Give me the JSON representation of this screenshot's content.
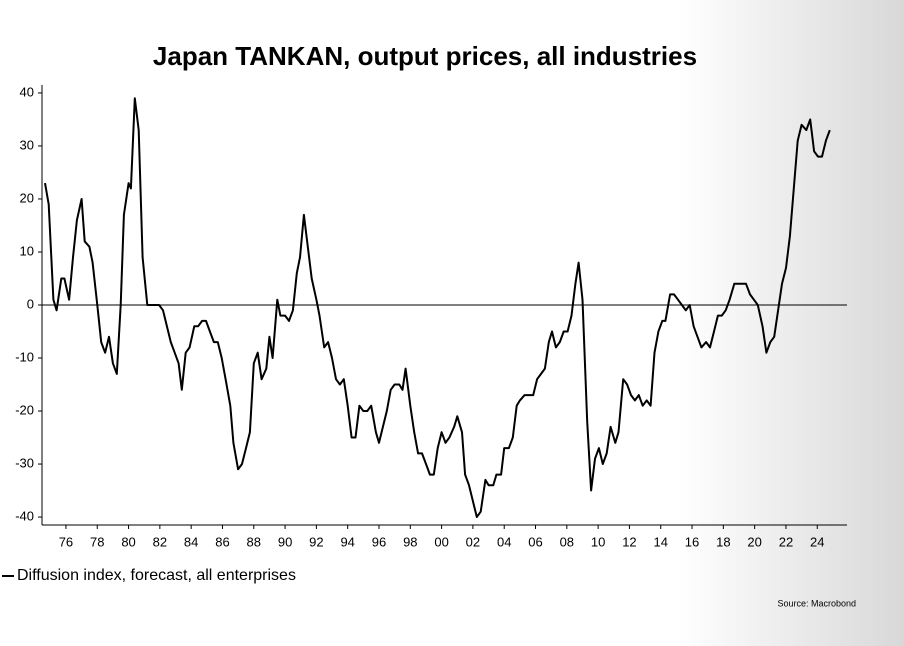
{
  "chart_data": {
    "type": "line",
    "title": "Japan TANKAN, output prices, all industries",
    "source": "Source: Macrobond",
    "xlim": [
      1974.47,
      2025.9
    ],
    "ylim": [
      -41.5,
      41.5
    ],
    "xticks": [
      {
        "value": 1976,
        "label": "76"
      },
      {
        "value": 1978,
        "label": "78"
      },
      {
        "value": 1980,
        "label": "80"
      },
      {
        "value": 1982,
        "label": "82"
      },
      {
        "value": 1984,
        "label": "84"
      },
      {
        "value": 1986,
        "label": "86"
      },
      {
        "value": 1988,
        "label": "88"
      },
      {
        "value": 1990,
        "label": "90"
      },
      {
        "value": 1992,
        "label": "92"
      },
      {
        "value": 1994,
        "label": "94"
      },
      {
        "value": 1996,
        "label": "96"
      },
      {
        "value": 1998,
        "label": "98"
      },
      {
        "value": 2000,
        "label": "00"
      },
      {
        "value": 2002,
        "label": "02"
      },
      {
        "value": 2004,
        "label": "04"
      },
      {
        "value": 2006,
        "label": "06"
      },
      {
        "value": 2008,
        "label": "08"
      },
      {
        "value": 2010,
        "label": "10"
      },
      {
        "value": 2012,
        "label": "12"
      },
      {
        "value": 2014,
        "label": "14"
      },
      {
        "value": 2016,
        "label": "16"
      },
      {
        "value": 2018,
        "label": "18"
      },
      {
        "value": 2020,
        "label": "20"
      },
      {
        "value": 2022,
        "label": "22"
      },
      {
        "value": 2024,
        "label": "24"
      }
    ],
    "yticks": [
      -40,
      -30,
      -20,
      -10,
      0,
      10,
      20,
      30,
      40
    ],
    "x": [
      1974.66,
      1974.9,
      1975.2,
      1975.4,
      1975.7,
      1975.9,
      1976.2,
      1976.45,
      1976.7,
      1977.0,
      1977.2,
      1977.5,
      1977.7,
      1978.0,
      1978.25,
      1978.5,
      1978.75,
      1979.0,
      1979.25,
      1979.5,
      1979.7,
      1980.0,
      1980.15,
      1980.4,
      1980.65,
      1980.9,
      1981.2,
      1981.45,
      1981.7,
      1981.95,
      1982.2,
      1982.45,
      1982.7,
      1982.95,
      1983.2,
      1983.4,
      1983.65,
      1983.9,
      1984.2,
      1984.45,
      1984.7,
      1984.95,
      1985.2,
      1985.45,
      1985.7,
      1985.95,
      1986.2,
      1986.5,
      1986.7,
      1987.0,
      1987.25,
      1987.5,
      1987.75,
      1988.0,
      1988.25,
      1988.5,
      1988.8,
      1989.0,
      1989.2,
      1989.5,
      1989.7,
      1990.0,
      1990.25,
      1990.5,
      1990.75,
      1990.95,
      1991.2,
      1991.45,
      1991.7,
      1992.0,
      1992.2,
      1992.5,
      1992.75,
      1993.0,
      1993.25,
      1993.5,
      1993.75,
      1994.0,
      1994.25,
      1994.5,
      1994.75,
      1995.0,
      1995.25,
      1995.5,
      1995.8,
      1996.0,
      1996.25,
      1996.5,
      1996.75,
      1997.0,
      1997.3,
      1997.5,
      1997.7,
      1998.0,
      1998.25,
      1998.5,
      1998.75,
      1999.0,
      1999.25,
      1999.5,
      1999.75,
      2000.0,
      2000.25,
      2000.5,
      2000.8,
      2001.0,
      2001.3,
      2001.5,
      2001.75,
      2002.0,
      2002.25,
      2002.5,
      2002.8,
      2003.0,
      2003.3,
      2003.5,
      2003.8,
      2004.0,
      2004.3,
      2004.55,
      2004.8,
      2005.0,
      2005.3,
      2005.6,
      2005.85,
      2006.1,
      2006.35,
      2006.6,
      2006.85,
      2007.05,
      2007.3,
      2007.55,
      2007.8,
      2008.05,
      2008.3,
      2008.55,
      2008.75,
      2009.0,
      2009.3,
      2009.55,
      2009.8,
      2010.05,
      2010.3,
      2010.55,
      2010.8,
      2011.1,
      2011.3,
      2011.6,
      2011.85,
      2012.1,
      2012.35,
      2012.6,
      2012.85,
      2013.1,
      2013.35,
      2013.6,
      2013.85,
      2014.1,
      2014.3,
      2014.6,
      2014.85,
      2015.1,
      2015.35,
      2015.6,
      2015.85,
      2016.1,
      2016.35,
      2016.6,
      2016.9,
      2017.15,
      2017.4,
      2017.65,
      2017.9,
      2018.15,
      2018.4,
      2018.7,
      2018.95,
      2019.2,
      2019.45,
      2019.7,
      2019.95,
      2020.2,
      2020.5,
      2020.75,
      2021.0,
      2021.25,
      2021.5,
      2021.75,
      2022.0,
      2022.25,
      2022.5,
      2022.75,
      2023.0,
      2023.3,
      2023.55,
      2023.8,
      2024.05,
      2024.3,
      2024.55,
      2024.8
    ],
    "series": [
      {
        "name": "Diffusion index, forecast, all enterprises",
        "color": "#000000",
        "values": [
          23,
          19,
          1,
          -1,
          5,
          5,
          1,
          9,
          16,
          20,
          12,
          11,
          8,
          0,
          -7,
          -9,
          -6,
          -11,
          -13,
          0,
          17,
          23,
          22,
          39,
          33,
          9,
          0,
          0,
          0,
          0,
          -1,
          -4,
          -7,
          -9,
          -11,
          -16,
          -9,
          -8,
          -4,
          -4,
          -3,
          -3,
          -5,
          -7,
          -7,
          -10,
          -14,
          -19,
          -26,
          -31,
          -30,
          -27,
          -24,
          -11,
          -9,
          -14,
          -12,
          -6,
          -10,
          1,
          -2,
          -2,
          -3,
          -1,
          6,
          9,
          17,
          11,
          5,
          1,
          -2,
          -8,
          -7,
          -10,
          -14,
          -15,
          -14,
          -19,
          -25,
          -25,
          -19,
          -20,
          -20,
          -19,
          -24,
          -26,
          -23,
          -20,
          -16,
          -15,
          -15,
          -16,
          -12,
          -19,
          -24,
          -28,
          -28,
          -30,
          -32,
          -32,
          -27,
          -24,
          -26,
          -25,
          -23,
          -21,
          -24,
          -32,
          -34,
          -37,
          -40,
          -39,
          -33,
          -34,
          -34,
          -32,
          -32,
          -27,
          -27,
          -25,
          -19,
          -18,
          -17,
          -17,
          -17,
          -14,
          -13,
          -12,
          -7,
          -5,
          -8,
          -7,
          -5,
          -5,
          -2,
          4,
          8,
          1,
          -22,
          -35,
          -29,
          -27,
          -30,
          -28,
          -23,
          -26,
          -24,
          -14,
          -15,
          -17,
          -18,
          -17,
          -19,
          -18,
          -19,
          -9,
          -5,
          -3,
          -3,
          2,
          2,
          1,
          0,
          -1,
          0,
          -4,
          -6,
          -8,
          -7,
          -8,
          -5,
          -2,
          -2,
          -1,
          1,
          4,
          4,
          4,
          4,
          2,
          1,
          0,
          -4,
          -9,
          -7,
          -6,
          -1,
          4,
          7,
          13,
          22,
          31,
          34,
          33,
          35,
          29,
          28,
          28,
          31,
          33
        ]
      }
    ]
  }
}
